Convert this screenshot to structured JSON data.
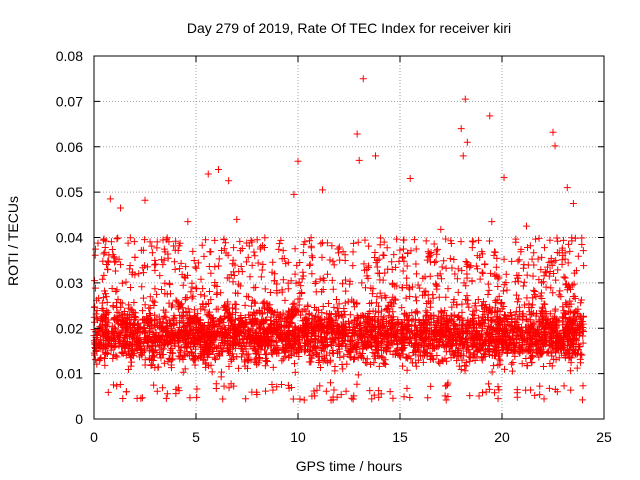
{
  "chart_data": {
    "type": "scatter",
    "title": "Day 279 of 2019, Rate Of TEC Index for receiver kiri",
    "xlabel": "GPS time / hours",
    "ylabel": "ROTI / TECUs",
    "xlim": [
      0,
      25
    ],
    "ylim": [
      0,
      0.08
    ],
    "x_ticks": [
      "0",
      "5",
      "10",
      "15",
      "20",
      "25"
    ],
    "y_ticks": [
      "0",
      "0.01",
      "0.02",
      "0.03",
      "0.04",
      "0.05",
      "0.06",
      "0.07",
      "0.08"
    ],
    "grid": true,
    "marker": "+",
    "color": "#ff0000",
    "series": [
      {
        "name": "ROTI",
        "notable_points": [
          {
            "x": 13.2,
            "y": 0.075
          },
          {
            "x": 18.2,
            "y": 0.0705
          },
          {
            "x": 19.4,
            "y": 0.0668
          },
          {
            "x": 12.9,
            "y": 0.0628
          },
          {
            "x": 22.5,
            "y": 0.0632
          },
          {
            "x": 18.0,
            "y": 0.064
          },
          {
            "x": 18.3,
            "y": 0.061
          },
          {
            "x": 22.6,
            "y": 0.0602
          },
          {
            "x": 18.1,
            "y": 0.058
          },
          {
            "x": 13.8,
            "y": 0.058
          },
          {
            "x": 13.0,
            "y": 0.057
          },
          {
            "x": 10.0,
            "y": 0.0568
          },
          {
            "x": 6.1,
            "y": 0.055
          },
          {
            "x": 5.6,
            "y": 0.054
          },
          {
            "x": 20.1,
            "y": 0.0532
          },
          {
            "x": 6.6,
            "y": 0.0525
          },
          {
            "x": 15.5,
            "y": 0.053
          },
          {
            "x": 23.2,
            "y": 0.051
          },
          {
            "x": 11.2,
            "y": 0.0505
          },
          {
            "x": 9.8,
            "y": 0.0495
          },
          {
            "x": 0.8,
            "y": 0.0485
          },
          {
            "x": 2.5,
            "y": 0.0482
          },
          {
            "x": 23.5,
            "y": 0.0475
          },
          {
            "x": 1.3,
            "y": 0.0465
          },
          {
            "x": 19.5,
            "y": 0.0435
          },
          {
            "x": 4.6,
            "y": 0.0435
          },
          {
            "x": 7.0,
            "y": 0.044
          },
          {
            "x": 8.0,
            "y": 0.0395
          },
          {
            "x": 17.0,
            "y": 0.0418
          },
          {
            "x": 21.2,
            "y": 0.0425
          }
        ],
        "bulk": {
          "x_range": [
            0,
            24
          ],
          "y_floor": 0.004,
          "y_core_range": [
            0.008,
            0.025
          ],
          "y_upper_envelope": 0.04,
          "approx_count": 4200
        }
      }
    ]
  }
}
